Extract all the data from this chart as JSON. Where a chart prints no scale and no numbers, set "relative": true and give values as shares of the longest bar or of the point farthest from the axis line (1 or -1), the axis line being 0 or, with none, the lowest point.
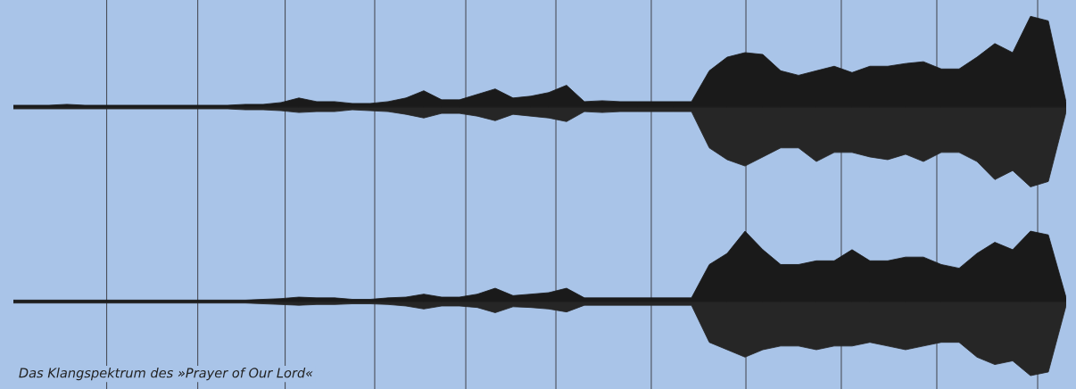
{
  "chart_data": [
    {
      "type": "area",
      "relative": true,
      "categories": [
        null,
        null,
        null,
        null,
        null,
        null,
        null,
        null,
        null,
        null,
        null,
        null,
        null,
        null,
        null,
        null,
        null,
        null,
        null,
        null,
        null,
        null,
        null,
        null,
        null,
        null,
        null,
        null,
        null,
        null,
        null,
        null,
        null,
        null,
        null,
        null,
        null,
        null,
        null,
        null,
        null,
        null,
        null,
        null,
        null,
        null,
        null,
        null,
        null,
        null,
        null,
        null,
        null,
        null,
        null,
        null,
        null,
        null,
        null,
        null
      ],
      "series": [
        {
          "color": "#1a1a1a",
          "values": [
            0.02,
            0.02,
            0.02,
            0.03,
            0.02,
            0.02,
            0.02,
            0.02,
            0.02,
            0.02,
            0.02,
            0.02,
            0.02,
            0.03,
            0.03,
            0.05,
            0.1,
            0.06,
            0.06,
            0.04,
            0.04,
            0.06,
            0.1,
            0.18,
            0.08,
            0.08,
            0.14,
            0.2,
            0.1,
            0.12,
            0.16,
            0.24,
            0.06,
            0.07,
            0.06,
            0.06,
            0.06,
            0.06,
            0.06,
            0.4,
            0.55,
            0.6,
            0.58,
            0.4,
            0.35,
            0.4,
            0.45,
            0.38,
            0.45,
            0.45,
            0.48,
            0.5,
            0.42,
            0.42,
            0.55,
            0.7,
            0.6,
            1.0,
            0.95,
            0.05
          ]
        },
        {
          "color": "#262626",
          "values": [
            -0.02,
            -0.02,
            -0.02,
            -0.02,
            -0.02,
            -0.02,
            -0.02,
            -0.02,
            -0.02,
            -0.02,
            -0.02,
            -0.02,
            -0.02,
            -0.03,
            -0.03,
            -0.04,
            -0.06,
            -0.05,
            -0.05,
            -0.03,
            -0.04,
            -0.05,
            -0.08,
            -0.12,
            -0.07,
            -0.07,
            -0.1,
            -0.15,
            -0.08,
            -0.1,
            -0.12,
            -0.16,
            -0.05,
            -0.06,
            -0.05,
            -0.05,
            -0.05,
            -0.05,
            -0.05,
            -0.45,
            -0.58,
            -0.65,
            -0.55,
            -0.45,
            -0.45,
            -0.6,
            -0.5,
            -0.5,
            -0.55,
            -0.58,
            -0.52,
            -0.6,
            -0.5,
            -0.5,
            -0.6,
            -0.8,
            -0.7,
            -0.88,
            -0.82,
            -0.05
          ]
        }
      ],
      "grid": "x"
    },
    {
      "type": "area",
      "relative": true,
      "categories": [
        null,
        null,
        null,
        null,
        null,
        null,
        null,
        null,
        null,
        null,
        null,
        null,
        null,
        null,
        null,
        null,
        null,
        null,
        null,
        null,
        null,
        null,
        null,
        null,
        null,
        null,
        null,
        null,
        null,
        null,
        null,
        null,
        null,
        null,
        null,
        null,
        null,
        null,
        null,
        null,
        null,
        null,
        null,
        null,
        null,
        null,
        null,
        null,
        null,
        null,
        null,
        null,
        null,
        null,
        null,
        null,
        null,
        null,
        null,
        null
      ],
      "series": [
        {
          "color": "#1a1a1a",
          "values": [
            0.02,
            0.02,
            0.02,
            0.02,
            0.02,
            0.02,
            0.02,
            0.02,
            0.02,
            0.02,
            0.02,
            0.02,
            0.02,
            0.02,
            0.03,
            0.04,
            0.06,
            0.05,
            0.05,
            0.03,
            0.03,
            0.05,
            0.06,
            0.1,
            0.06,
            0.06,
            0.1,
            0.18,
            0.08,
            0.1,
            0.12,
            0.18,
            0.05,
            0.05,
            0.05,
            0.05,
            0.05,
            0.05,
            0.05,
            0.5,
            0.65,
            0.95,
            0.7,
            0.5,
            0.5,
            0.55,
            0.55,
            0.7,
            0.55,
            0.55,
            0.6,
            0.6,
            0.5,
            0.45,
            0.65,
            0.8,
            0.7,
            0.95,
            0.9,
            0.05
          ]
        },
        {
          "color": "#262626",
          "values": [
            -0.02,
            -0.02,
            -0.02,
            -0.02,
            -0.02,
            -0.02,
            -0.02,
            -0.02,
            -0.02,
            -0.02,
            -0.02,
            -0.02,
            -0.02,
            -0.02,
            -0.03,
            -0.04,
            -0.05,
            -0.04,
            -0.04,
            -0.03,
            -0.03,
            -0.04,
            -0.06,
            -0.1,
            -0.06,
            -0.06,
            -0.08,
            -0.15,
            -0.07,
            -0.08,
            -0.1,
            -0.14,
            -0.05,
            -0.05,
            -0.05,
            -0.05,
            -0.05,
            -0.05,
            -0.05,
            -0.55,
            -0.65,
            -0.75,
            -0.65,
            -0.6,
            -0.6,
            -0.65,
            -0.6,
            -0.6,
            -0.55,
            -0.6,
            -0.65,
            -0.6,
            -0.55,
            -0.55,
            -0.75,
            -0.85,
            -0.8,
            -1.0,
            -0.95,
            -0.05
          ]
        }
      ],
      "grid": "x",
      "annotations": [
        "Das Klangspektrum des »Prayer of Our Lord«"
      ]
    }
  ]
}
